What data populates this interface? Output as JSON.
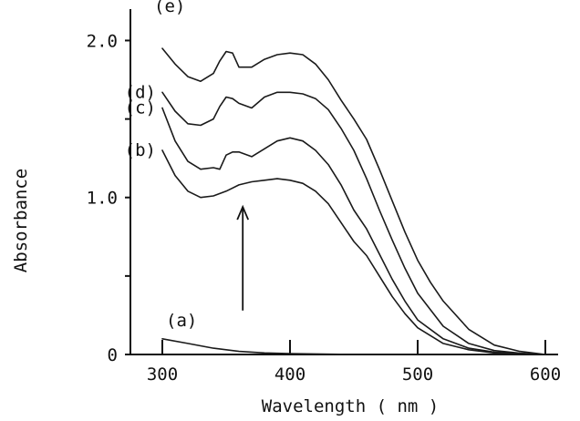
{
  "chart_data": {
    "type": "line",
    "xlabel": "Wavelength ( nm )",
    "ylabel": "Absorbance",
    "xlim": [
      275,
      610
    ],
    "ylim": [
      0,
      2.2
    ],
    "x_ticks": [
      {
        "value": 300,
        "label": "300"
      },
      {
        "value": 400,
        "label": "400"
      },
      {
        "value": 500,
        "label": "500"
      },
      {
        "value": 600,
        "label": "600"
      }
    ],
    "y_ticks": [
      {
        "value": 0,
        "label": "0"
      },
      {
        "value": 0.5,
        "label": ""
      },
      {
        "value": 1.0,
        "label": "1.0"
      },
      {
        "value": 1.5,
        "label": ""
      },
      {
        "value": 2.0,
        "label": "2.0"
      }
    ],
    "grid": false,
    "annotation": {
      "type": "arrow",
      "direction": "up",
      "x": 363,
      "y_from": 0.28,
      "y_to": 0.94
    },
    "series": [
      {
        "name": "(a)",
        "points": [
          [
            300,
            0.1
          ],
          [
            320,
            0.07
          ],
          [
            340,
            0.04
          ],
          [
            360,
            0.02
          ],
          [
            380,
            0.01
          ],
          [
            400,
            0.005
          ],
          [
            450,
            0.0
          ],
          [
            500,
            0.0
          ],
          [
            550,
            0.0
          ],
          [
            600,
            0.0
          ]
        ]
      },
      {
        "name": "(b)",
        "points": [
          [
            300,
            1.3
          ],
          [
            310,
            1.14
          ],
          [
            320,
            1.04
          ],
          [
            330,
            1.0
          ],
          [
            340,
            1.01
          ],
          [
            350,
            1.04
          ],
          [
            360,
            1.08
          ],
          [
            370,
            1.1
          ],
          [
            380,
            1.11
          ],
          [
            390,
            1.12
          ],
          [
            400,
            1.11
          ],
          [
            410,
            1.09
          ],
          [
            420,
            1.04
          ],
          [
            430,
            0.96
          ],
          [
            440,
            0.84
          ],
          [
            450,
            0.72
          ],
          [
            460,
            0.63
          ],
          [
            470,
            0.5
          ],
          [
            480,
            0.37
          ],
          [
            490,
            0.26
          ],
          [
            500,
            0.17
          ],
          [
            520,
            0.07
          ],
          [
            540,
            0.03
          ],
          [
            560,
            0.01
          ],
          [
            580,
            0.003
          ],
          [
            600,
            0.0
          ]
        ]
      },
      {
        "name": "(c)",
        "points": [
          [
            300,
            1.57
          ],
          [
            310,
            1.36
          ],
          [
            320,
            1.23
          ],
          [
            330,
            1.18
          ],
          [
            340,
            1.19
          ],
          [
            345,
            1.18
          ],
          [
            350,
            1.27
          ],
          [
            355,
            1.29
          ],
          [
            360,
            1.29
          ],
          [
            370,
            1.26
          ],
          [
            380,
            1.31
          ],
          [
            390,
            1.36
          ],
          [
            400,
            1.38
          ],
          [
            410,
            1.36
          ],
          [
            420,
            1.3
          ],
          [
            430,
            1.21
          ],
          [
            440,
            1.08
          ],
          [
            450,
            0.92
          ],
          [
            460,
            0.8
          ],
          [
            470,
            0.64
          ],
          [
            480,
            0.48
          ],
          [
            490,
            0.34
          ],
          [
            500,
            0.22
          ],
          [
            520,
            0.1
          ],
          [
            540,
            0.04
          ],
          [
            560,
            0.015
          ],
          [
            580,
            0.005
          ],
          [
            600,
            0.0
          ]
        ]
      },
      {
        "name": "(d)",
        "points": [
          [
            300,
            1.67
          ],
          [
            310,
            1.55
          ],
          [
            320,
            1.47
          ],
          [
            330,
            1.46
          ],
          [
            340,
            1.5
          ],
          [
            345,
            1.58
          ],
          [
            350,
            1.64
          ],
          [
            355,
            1.63
          ],
          [
            360,
            1.6
          ],
          [
            370,
            1.57
          ],
          [
            380,
            1.64
          ],
          [
            390,
            1.67
          ],
          [
            400,
            1.67
          ],
          [
            410,
            1.66
          ],
          [
            420,
            1.63
          ],
          [
            430,
            1.56
          ],
          [
            440,
            1.44
          ],
          [
            450,
            1.3
          ],
          [
            460,
            1.12
          ],
          [
            470,
            0.92
          ],
          [
            480,
            0.73
          ],
          [
            490,
            0.55
          ],
          [
            500,
            0.39
          ],
          [
            520,
            0.18
          ],
          [
            540,
            0.07
          ],
          [
            560,
            0.025
          ],
          [
            580,
            0.008
          ],
          [
            600,
            0.0
          ]
        ]
      },
      {
        "name": "(e)",
        "points": [
          [
            300,
            1.95
          ],
          [
            310,
            1.85
          ],
          [
            320,
            1.77
          ],
          [
            330,
            1.74
          ],
          [
            340,
            1.79
          ],
          [
            345,
            1.87
          ],
          [
            350,
            1.93
          ],
          [
            355,
            1.92
          ],
          [
            360,
            1.83
          ],
          [
            370,
            1.83
          ],
          [
            380,
            1.88
          ],
          [
            390,
            1.91
          ],
          [
            400,
            1.92
          ],
          [
            410,
            1.91
          ],
          [
            420,
            1.85
          ],
          [
            430,
            1.75
          ],
          [
            440,
            1.62
          ],
          [
            450,
            1.5
          ],
          [
            460,
            1.37
          ],
          [
            470,
            1.18
          ],
          [
            480,
            0.98
          ],
          [
            490,
            0.78
          ],
          [
            500,
            0.6
          ],
          [
            510,
            0.46
          ],
          [
            520,
            0.34
          ],
          [
            540,
            0.16
          ],
          [
            560,
            0.06
          ],
          [
            580,
            0.02
          ],
          [
            600,
            0.0
          ]
        ]
      }
    ]
  }
}
